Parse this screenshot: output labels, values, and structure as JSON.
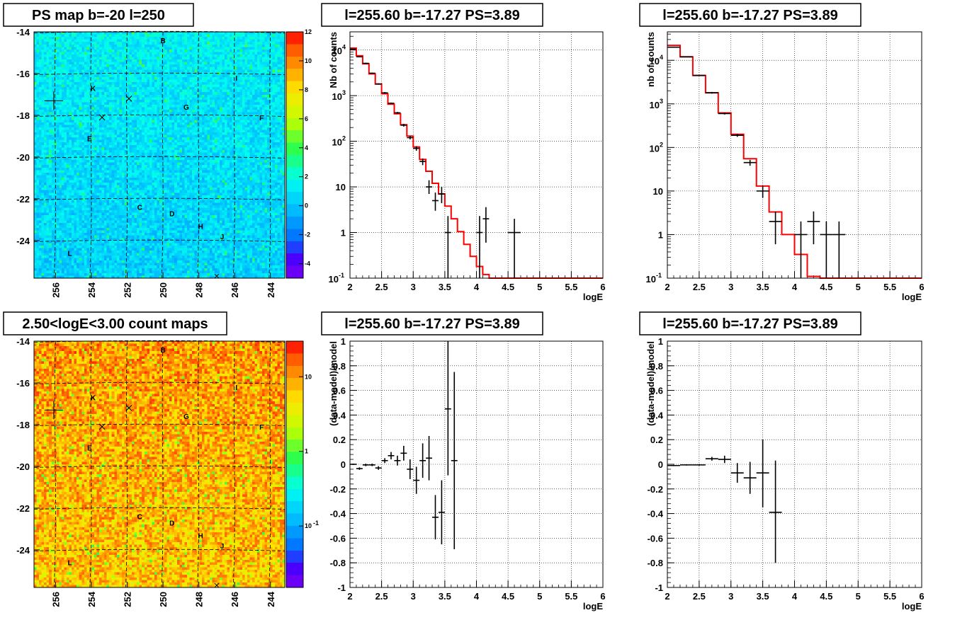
{
  "chart_data": [
    {
      "type": "heatmap",
      "title": "PS map b=-20 l=250",
      "x_ticks": [
        "256",
        "254",
        "252",
        "250",
        "248",
        "246",
        "244"
      ],
      "x_tick_values": [
        256,
        254,
        252,
        250,
        248,
        246,
        244
      ],
      "y_ticks": [
        "-14",
        "-16",
        "-18",
        "-20",
        "-22",
        "-24"
      ],
      "y_tick_values": [
        -14,
        -16,
        -18,
        -20,
        -22,
        -24
      ],
      "xlim": [
        257.2,
        243.2
      ],
      "ylim": [
        -25.8,
        -14
      ],
      "colorbar": {
        "type": "linear",
        "ticks": [
          "12",
          "10",
          "8",
          "6",
          "4",
          "2",
          "0",
          "-2",
          "-4"
        ],
        "tick_values": [
          12,
          10,
          8,
          6,
          4,
          2,
          0,
          -2,
          -4
        ],
        "range": [
          -5,
          12
        ]
      },
      "sources": [
        {
          "name": "B",
          "l": 250.0,
          "b": -14.4
        },
        {
          "name": "I",
          "l": 245.9,
          "b": -16.2
        },
        {
          "name": "K",
          "l": 253.9,
          "b": -16.7
        },
        {
          "name": "G",
          "l": 248.7,
          "b": -17.6
        },
        {
          "name": "F",
          "l": 244.5,
          "b": -18.1
        },
        {
          "name": "E",
          "l": 254.1,
          "b": -19.1
        },
        {
          "name": "C",
          "l": 251.3,
          "b": -22.4
        },
        {
          "name": "D",
          "l": 249.5,
          "b": -22.7
        },
        {
          "name": "H",
          "l": 247.9,
          "b": -23.3
        },
        {
          "name": "J",
          "l": 246.7,
          "b": -23.8
        },
        {
          "name": "L",
          "l": 255.2,
          "b": -24.6
        }
      ]
    },
    {
      "type": "line",
      "title": "l=255.60 b=-17.27 PS=3.89",
      "xlabel": "logE",
      "ylabel": "Nb of counts",
      "y_scale": "log",
      "xlim": [
        2,
        6
      ],
      "ylim": [
        0.1,
        25000
      ],
      "x_ticks": [
        "2",
        "2.5",
        "3",
        "3.5",
        "4",
        "4.5",
        "5",
        "5.5",
        "6"
      ],
      "x_tick_values": [
        2,
        2.5,
        3,
        3.5,
        4,
        4.5,
        5,
        5.5,
        6
      ],
      "y_ticks": [
        {
          "base": "10",
          "exp": "4",
          "value": 10000
        },
        {
          "base": "10",
          "exp": "3",
          "value": 1000
        },
        {
          "base": "10",
          "exp": "2",
          "value": 100
        },
        {
          "base": "10",
          "exp": "",
          "value": 10
        },
        {
          "base": "1",
          "exp": "",
          "value": 1
        },
        {
          "base": "10",
          "exp": "-1",
          "value": 0.1
        }
      ],
      "grid": true,
      "series": [
        {
          "style": "model-step",
          "color": "#ff0000",
          "edges": [
            2,
            2.1,
            2.2,
            2.3,
            2.4,
            2.5,
            2.6,
            2.7,
            2.8,
            2.9,
            3.0,
            3.1,
            3.2,
            3.3,
            3.4,
            3.5,
            3.6,
            3.7,
            3.8,
            3.9,
            4.0,
            4.1,
            4.2,
            4.3,
            4.4,
            4.5,
            6.0
          ],
          "values": [
            11000,
            7500,
            5000,
            3000,
            1800,
            1100,
            650,
            400,
            230,
            130,
            75,
            40,
            22,
            12,
            7,
            3.8,
            2.0,
            1.05,
            0.55,
            0.3,
            0.18,
            0.12,
            0.1,
            0.1,
            0.1,
            0.1
          ]
        },
        {
          "style": "data-errors",
          "color": "#000000",
          "points": [
            {
              "x": 2.05,
              "y": 10400,
              "lo": 10200,
              "hi": 10600,
              "xerr": 0.05
            },
            {
              "x": 2.15,
              "y": 7100,
              "lo": 6950,
              "hi": 7250,
              "xerr": 0.05
            },
            {
              "x": 2.25,
              "y": 5100,
              "lo": 4950,
              "hi": 5250,
              "xerr": 0.05
            },
            {
              "x": 2.35,
              "y": 3100,
              "lo": 3000,
              "hi": 3200,
              "xerr": 0.05
            },
            {
              "x": 2.45,
              "y": 1800,
              "lo": 1740,
              "hi": 1860,
              "xerr": 0.05
            },
            {
              "x": 2.55,
              "y": 1150,
              "lo": 1100,
              "hi": 1200,
              "xerr": 0.05
            },
            {
              "x": 2.65,
              "y": 680,
              "lo": 655,
              "hi": 705,
              "xerr": 0.05
            },
            {
              "x": 2.75,
              "y": 420,
              "lo": 400,
              "hi": 440,
              "xerr": 0.05
            },
            {
              "x": 2.85,
              "y": 225,
              "lo": 210,
              "hi": 240,
              "xerr": 0.05
            },
            {
              "x": 2.95,
              "y": 120,
              "lo": 110,
              "hi": 131,
              "xerr": 0.05
            },
            {
              "x": 3.05,
              "y": 70,
              "lo": 62,
              "hi": 78,
              "xerr": 0.05
            },
            {
              "x": 3.15,
              "y": 36,
              "lo": 30,
              "hi": 42,
              "xerr": 0.05
            },
            {
              "x": 3.25,
              "y": 10,
              "lo": 7,
              "hi": 14,
              "xerr": 0.05
            },
            {
              "x": 3.35,
              "y": 5,
              "lo": 3,
              "hi": 7.5,
              "xerr": 0.05
            },
            {
              "x": 3.45,
              "y": 7,
              "lo": 4.4,
              "hi": 10,
              "xerr": 0.05
            },
            {
              "x": 3.55,
              "y": 1,
              "lo": 0.1,
              "hi": 2.3,
              "xerr": 0.05
            },
            {
              "x": 4.05,
              "y": 1,
              "lo": 0.1,
              "hi": 2.3,
              "xerr": 0.05
            },
            {
              "x": 4.15,
              "y": 2,
              "lo": 0.6,
              "hi": 3.6,
              "xerr": 0.05
            },
            {
              "x": 4.6,
              "y": 1,
              "lo": 0.1,
              "hi": 2.0,
              "xerr": 0.1
            }
          ]
        }
      ]
    },
    {
      "type": "line",
      "title": "l=255.60 b=-17.27 PS=3.89",
      "xlabel": "logE",
      "ylabel": "nb of counts",
      "y_scale": "log",
      "xlim": [
        2,
        6
      ],
      "ylim": [
        0.1,
        45000
      ],
      "x_ticks": [
        "2",
        "2.5",
        "3",
        "3.5",
        "4",
        "4.5",
        "5",
        "5.5",
        "6"
      ],
      "x_tick_values": [
        2,
        2.5,
        3,
        3.5,
        4,
        4.5,
        5,
        5.5,
        6
      ],
      "y_ticks": [
        {
          "base": "10",
          "exp": "4",
          "value": 10000
        },
        {
          "base": "10",
          "exp": "3",
          "value": 1000
        },
        {
          "base": "10",
          "exp": "2",
          "value": 100
        },
        {
          "base": "10",
          "exp": "",
          "value": 10
        },
        {
          "base": "1",
          "exp": "",
          "value": 1
        },
        {
          "base": "10",
          "exp": "-1",
          "value": 0.1
        }
      ],
      "grid": true,
      "series": [
        {
          "style": "model-step",
          "color": "#ff0000",
          "edges": [
            2,
            2.2,
            2.4,
            2.6,
            2.8,
            3.0,
            3.2,
            3.4,
            3.6,
            3.8,
            4.0,
            4.2,
            4.4,
            6.0
          ],
          "values": [
            22000,
            12000,
            4500,
            1800,
            620,
            200,
            55,
            13,
            3.3,
            1.0,
            0.35,
            0.11,
            0.1
          ]
        },
        {
          "style": "data-errors",
          "color": "#000000",
          "points": [
            {
              "x": 2.1,
              "y": 20000,
              "lo": 19500,
              "hi": 20500,
              "xerr": 0.1
            },
            {
              "x": 2.3,
              "y": 12000,
              "lo": 11700,
              "hi": 12300,
              "xerr": 0.1
            },
            {
              "x": 2.5,
              "y": 4500,
              "lo": 4350,
              "hi": 4650,
              "xerr": 0.1
            },
            {
              "x": 2.7,
              "y": 1800,
              "lo": 1720,
              "hi": 1880,
              "xerr": 0.1
            },
            {
              "x": 2.9,
              "y": 600,
              "lo": 570,
              "hi": 630,
              "xerr": 0.1
            },
            {
              "x": 3.1,
              "y": 190,
              "lo": 175,
              "hi": 205,
              "xerr": 0.1
            },
            {
              "x": 3.3,
              "y": 45,
              "lo": 38,
              "hi": 52,
              "xerr": 0.1
            },
            {
              "x": 3.5,
              "y": 10,
              "lo": 7,
              "hi": 13,
              "xerr": 0.1
            },
            {
              "x": 3.7,
              "y": 2,
              "lo": 0.6,
              "hi": 3.4,
              "xerr": 0.1
            },
            {
              "x": 4.1,
              "y": 1,
              "lo": 0.1,
              "hi": 2.0,
              "xerr": 0.1
            },
            {
              "x": 4.3,
              "y": 2,
              "lo": 0.6,
              "hi": 3.4,
              "xerr": 0.1
            },
            {
              "x": 4.5,
              "y": 1,
              "lo": 0.1,
              "hi": 2.0,
              "xerr": 0.1
            },
            {
              "x": 4.7,
              "y": 1,
              "lo": 0.1,
              "hi": 2.0,
              "xerr": 0.1
            }
          ]
        }
      ]
    },
    {
      "type": "heatmap",
      "title": "2.50<logE<3.00 count maps",
      "x_ticks": [
        "256",
        "254",
        "252",
        "250",
        "248",
        "246",
        "244"
      ],
      "x_tick_values": [
        256,
        254,
        252,
        250,
        248,
        246,
        244
      ],
      "y_ticks": [
        "-14",
        "-16",
        "-18",
        "-20",
        "-22",
        "-24"
      ],
      "y_tick_values": [
        -14,
        -16,
        -18,
        -20,
        -22,
        -24
      ],
      "xlim": [
        257.2,
        243.2
      ],
      "ylim": [
        -25.8,
        -14
      ],
      "colorbar": {
        "type": "log",
        "ticks": [
          {
            "base": "10",
            "exp": "",
            "value": 10
          },
          {
            "base": "1",
            "exp": "",
            "value": 1
          },
          {
            "base": "10",
            "exp": "-1",
            "value": 0.1
          }
        ],
        "range": [
          0.015,
          30
        ]
      },
      "sources": [
        {
          "name": "B",
          "l": 250.0,
          "b": -14.4
        },
        {
          "name": "I",
          "l": 245.9,
          "b": -16.2
        },
        {
          "name": "K",
          "l": 253.9,
          "b": -16.7
        },
        {
          "name": "G",
          "l": 248.7,
          "b": -17.6
        },
        {
          "name": "F",
          "l": 244.5,
          "b": -18.1
        },
        {
          "name": "E",
          "l": 254.1,
          "b": -19.1
        },
        {
          "name": "C",
          "l": 251.3,
          "b": -22.4
        },
        {
          "name": "D",
          "l": 249.5,
          "b": -22.7
        },
        {
          "name": "H",
          "l": 247.9,
          "b": -23.3
        },
        {
          "name": "J",
          "l": 246.7,
          "b": -23.8
        },
        {
          "name": "L",
          "l": 255.2,
          "b": -24.6
        }
      ]
    },
    {
      "type": "scatter",
      "title": "l=255.60 b=-17.27 PS=3.89",
      "xlabel": "logE",
      "ylabel": "(data-model)/model",
      "xlim": [
        2,
        6
      ],
      "ylim": [
        -1,
        1
      ],
      "x_ticks": [
        "2",
        "2.5",
        "3",
        "3.5",
        "4",
        "4.5",
        "5",
        "5.5",
        "6"
      ],
      "x_tick_values": [
        2,
        2.5,
        3,
        3.5,
        4,
        4.5,
        5,
        5.5,
        6
      ],
      "y_ticks": [
        "1",
        "0.8",
        "0.6",
        "0.4",
        "0.2",
        "0",
        "-0.2",
        "-0.4",
        "-0.6",
        "-0.8",
        "-1"
      ],
      "y_tick_values": [
        1,
        0.8,
        0.6,
        0.4,
        0.2,
        0,
        -0.2,
        -0.4,
        -0.6,
        -0.8,
        -1
      ],
      "grid": true,
      "series": [
        {
          "style": "data-errors",
          "color": "#000000",
          "points": [
            {
              "x": 2.05,
              "y": 0.0,
              "lo": -0.005,
              "hi": 0.005,
              "xerr": 0.05
            },
            {
              "x": 2.15,
              "y": -0.035,
              "lo": -0.045,
              "hi": -0.025,
              "xerr": 0.05
            },
            {
              "x": 2.25,
              "y": -0.005,
              "lo": -0.015,
              "hi": 0.005,
              "xerr": 0.05
            },
            {
              "x": 2.35,
              "y": -0.005,
              "lo": -0.015,
              "hi": 0.005,
              "xerr": 0.05
            },
            {
              "x": 2.45,
              "y": -0.03,
              "lo": -0.045,
              "hi": -0.015,
              "xerr": 0.05
            },
            {
              "x": 2.55,
              "y": 0.03,
              "lo": 0.01,
              "hi": 0.05,
              "xerr": 0.05
            },
            {
              "x": 2.65,
              "y": 0.07,
              "lo": 0.04,
              "hi": 0.1,
              "xerr": 0.05
            },
            {
              "x": 2.75,
              "y": 0.03,
              "lo": -0.01,
              "hi": 0.07,
              "xerr": 0.05
            },
            {
              "x": 2.85,
              "y": 0.09,
              "lo": 0.03,
              "hi": 0.15,
              "xerr": 0.05
            },
            {
              "x": 2.95,
              "y": -0.04,
              "lo": -0.12,
              "hi": 0.04,
              "xerr": 0.05
            },
            {
              "x": 3.05,
              "y": -0.13,
              "lo": -0.24,
              "hi": -0.02,
              "xerr": 0.05
            },
            {
              "x": 3.15,
              "y": 0.03,
              "lo": -0.11,
              "hi": 0.17,
              "xerr": 0.05
            },
            {
              "x": 3.25,
              "y": 0.05,
              "lo": -0.13,
              "hi": 0.23,
              "xerr": 0.05
            },
            {
              "x": 3.35,
              "y": -0.43,
              "lo": -0.61,
              "hi": -0.25,
              "xerr": 0.05
            },
            {
              "x": 3.45,
              "y": -0.39,
              "lo": -0.65,
              "hi": -0.13,
              "xerr": 0.05
            },
            {
              "x": 3.55,
              "y": 0.45,
              "lo": -0.09,
              "hi": 1.0,
              "xerr": 0.05
            },
            {
              "x": 3.65,
              "y": 0.03,
              "lo": -0.69,
              "hi": 0.75,
              "xerr": 0.05
            }
          ]
        }
      ]
    },
    {
      "type": "scatter",
      "title": "l=255.60 b=-17.27 PS=3.89",
      "xlabel": "logE",
      "ylabel": "(data-model)/model",
      "xlim": [
        2,
        6
      ],
      "ylim": [
        -1,
        1
      ],
      "x_ticks": [
        "2",
        "2.5",
        "3",
        "3.5",
        "4",
        "4.5",
        "5",
        "5.5",
        "6"
      ],
      "x_tick_values": [
        2,
        2.5,
        3,
        3.5,
        4,
        4.5,
        5,
        5.5,
        6
      ],
      "y_ticks": [
        "1",
        "0.8",
        "0.6",
        "0.4",
        "0.2",
        "0",
        "-0.2",
        "-0.4",
        "-0.6",
        "-0.8",
        "-1"
      ],
      "y_tick_values": [
        1,
        0.8,
        0.6,
        0.4,
        0.2,
        0,
        -0.2,
        -0.4,
        -0.6,
        -0.8,
        -1
      ],
      "grid": true,
      "series": [
        {
          "style": "data-errors",
          "color": "#000000",
          "points": [
            {
              "x": 2.1,
              "y": -0.01,
              "lo": -0.015,
              "hi": -0.005,
              "xerr": 0.1
            },
            {
              "x": 2.3,
              "y": -0.005,
              "lo": -0.01,
              "hi": 0.0,
              "xerr": 0.1
            },
            {
              "x": 2.5,
              "y": -0.005,
              "lo": -0.012,
              "hi": 0.002,
              "xerr": 0.1
            },
            {
              "x": 2.7,
              "y": 0.045,
              "lo": 0.03,
              "hi": 0.06,
              "xerr": 0.1
            },
            {
              "x": 2.9,
              "y": 0.04,
              "lo": 0.01,
              "hi": 0.07,
              "xerr": 0.1
            },
            {
              "x": 3.1,
              "y": -0.07,
              "lo": -0.15,
              "hi": 0.01,
              "xerr": 0.1
            },
            {
              "x": 3.3,
              "y": -0.11,
              "lo": -0.24,
              "hi": 0.02,
              "xerr": 0.1
            },
            {
              "x": 3.5,
              "y": -0.07,
              "lo": -0.35,
              "hi": 0.2,
              "xerr": 0.1
            },
            {
              "x": 3.7,
              "y": -0.39,
              "lo": -0.8,
              "hi": 0.03,
              "xerr": 0.1
            }
          ]
        }
      ]
    }
  ]
}
